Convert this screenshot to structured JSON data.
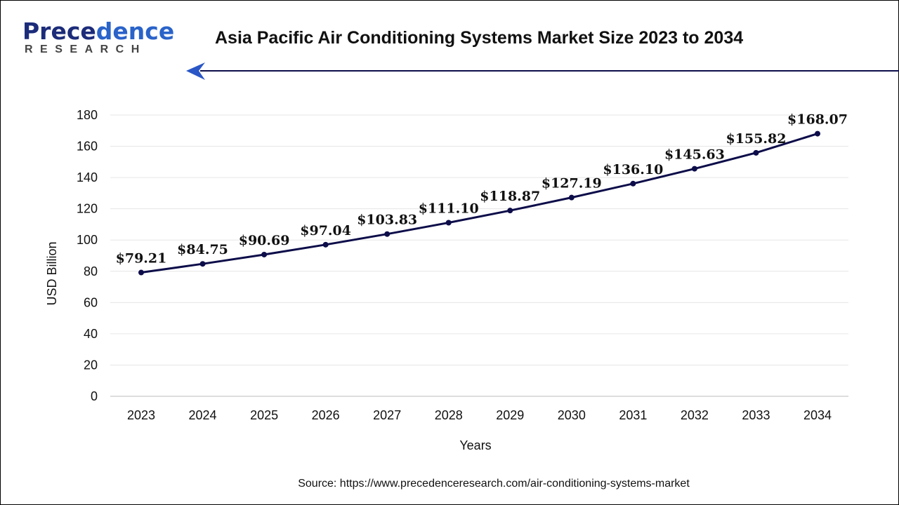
{
  "logo": {
    "text_main_dark": "Prece",
    "text_main_light": "dence",
    "text_sub": "RESEARCH"
  },
  "title": "Asia Pacific Air Conditioning Systems Market Size 2023 to 2034",
  "source": "Source: https://www.precedenceresearch.com/air-conditioning-systems-market",
  "colors": {
    "line": "#0d0d4a",
    "accent": "#1c2c7a",
    "grid": "#e6e6e6"
  },
  "chart_data": {
    "type": "line",
    "title": "Asia Pacific Air Conditioning Systems Market Size 2023 to 2034",
    "xlabel": "Years",
    "ylabel": "USD Billion",
    "ylim": [
      0,
      180
    ],
    "yticks": [
      0,
      20,
      40,
      60,
      80,
      100,
      120,
      140,
      160,
      180
    ],
    "grid": true,
    "categories": [
      "2023",
      "2024",
      "2025",
      "2026",
      "2027",
      "2028",
      "2029",
      "2030",
      "2031",
      "2032",
      "2033",
      "2034"
    ],
    "values": [
      79.21,
      84.75,
      90.69,
      97.04,
      103.83,
      111.1,
      118.87,
      127.19,
      136.1,
      145.63,
      155.82,
      168.07
    ],
    "data_labels": [
      "$79.21",
      "$84.75",
      "$90.69",
      "$97.04",
      "$103.83",
      "$111.10",
      "$118.87",
      "$127.19",
      "$136.10",
      "$145.63",
      "$155.82",
      "$168.07"
    ]
  }
}
